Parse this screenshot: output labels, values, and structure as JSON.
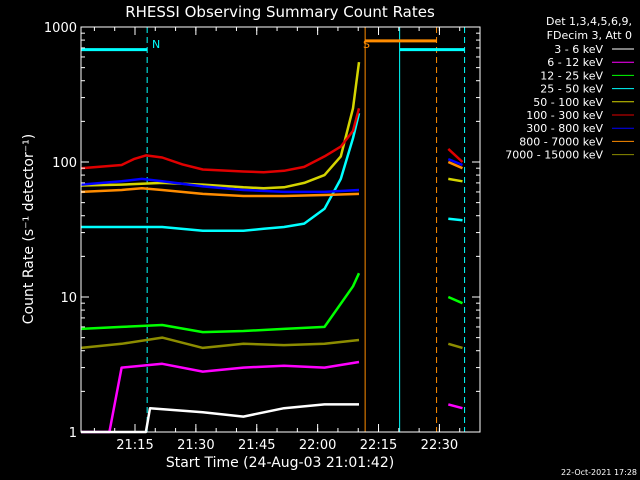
{
  "chart_data": {
    "type": "line",
    "title": "RHESSI Observing Summary Count Rates",
    "xlabel": "Start Time (24-Aug-03 21:01:42)",
    "ylabel": "Count Rate (s⁻¹ detector⁻¹)",
    "y_scale": "log",
    "ylim": [
      1,
      1000
    ],
    "x_unit": "minutes since 21:01:42",
    "xlim": [
      0,
      98.3
    ],
    "xticks": [
      {
        "label": "21:15",
        "value": 13.3
      },
      {
        "label": "21:30",
        "value": 28.3
      },
      {
        "label": "21:45",
        "value": 43.3
      },
      {
        "label": "22:00",
        "value": 58.3
      },
      {
        "label": "22:15",
        "value": 73.3
      },
      {
        "label": "22:30",
        "value": 88.3
      }
    ],
    "yticks": [
      {
        "label": "1",
        "value": 1
      },
      {
        "label": "10",
        "value": 10
      },
      {
        "label": "100",
        "value": 100
      },
      {
        "label": "1000",
        "value": 1000
      }
    ],
    "legend": {
      "placement": "right",
      "header": [
        "Det 1,3,4,5,6,9,",
        "FDecim 3, Att 0"
      ],
      "entries": [
        {
          "name": "3 - 6 keV",
          "color": "#ffffff"
        },
        {
          "name": "6 - 12 keV",
          "color": "#ff00ff"
        },
        {
          "name": "12 - 25 keV",
          "color": "#00ff00"
        },
        {
          "name": "25 - 50 keV",
          "color": "#00ffff"
        },
        {
          "name": "50 - 100 keV",
          "color": "#d4d400"
        },
        {
          "name": "100 - 300 keV",
          "color": "#e00000"
        },
        {
          "name": "300 - 800 keV",
          "color": "#0000ff"
        },
        {
          "name": "800 - 7000 keV",
          "color": "#ff8c00"
        },
        {
          "name": "7000 - 15000 keV",
          "color": "#8c8c00"
        }
      ]
    },
    "series": [
      {
        "name": "12 - 25 keV",
        "color": "#00ff00",
        "x": [
          0,
          10,
          20,
          30,
          40,
          50,
          60,
          67,
          68.5,
          89,
          90.5,
          94
        ],
        "y": [
          5.8,
          6.0,
          6.2,
          5.5,
          5.6,
          5.8,
          6.0,
          12,
          15,
          null,
          10,
          9
        ]
      },
      {
        "name": "25 - 50 keV",
        "color": "#00ffff",
        "x": [
          0,
          10,
          20,
          30,
          40,
          45,
          50,
          55,
          60,
          64,
          67,
          68.5,
          89,
          90.5,
          94
        ],
        "y": [
          33,
          33,
          33,
          31,
          31,
          32,
          33,
          35,
          45,
          75,
          150,
          230,
          null,
          38,
          37
        ]
      },
      {
        "name": "50 - 100 keV",
        "color": "#d4d400",
        "x": [
          0,
          10,
          20,
          30,
          40,
          45,
          50,
          55,
          60,
          64,
          67,
          68.5,
          89,
          90.5,
          94
        ],
        "y": [
          67,
          68,
          70,
          68,
          65,
          64,
          65,
          70,
          80,
          110,
          250,
          550,
          null,
          75,
          72
        ]
      },
      {
        "name": "100 - 300 keV",
        "color": "#e00000",
        "x": [
          0,
          10,
          13,
          16,
          20,
          25,
          30,
          40,
          45,
          50,
          55,
          60,
          64,
          67,
          68.5,
          89,
          90.5,
          94
        ],
        "y": [
          90,
          95,
          105,
          112,
          108,
          96,
          88,
          85,
          84,
          86,
          92,
          110,
          130,
          170,
          250,
          null,
          125,
          100
        ]
      },
      {
        "name": "300 - 800 keV",
        "color": "#0000ff",
        "x": [
          0,
          10,
          15,
          20,
          30,
          40,
          50,
          60,
          68.5,
          89,
          90.5,
          94
        ],
        "y": [
          68,
          72,
          75,
          72,
          66,
          62,
          60,
          60,
          62,
          null,
          105,
          95
        ]
      },
      {
        "name": "800 - 7000 keV",
        "color": "#ff8c00",
        "x": [
          0,
          10,
          15,
          20,
          30,
          40,
          50,
          60,
          68.5,
          89,
          90.5,
          94
        ],
        "y": [
          60,
          62,
          64,
          62,
          58,
          56,
          56,
          57,
          58,
          null,
          100,
          90
        ]
      },
      {
        "name": "7000 - 15000 keV",
        "color": "#8c8c00",
        "x": [
          0,
          10,
          20,
          30,
          40,
          50,
          60,
          68.5,
          89,
          90.5,
          94
        ],
        "y": [
          4.2,
          4.5,
          5.0,
          4.2,
          4.5,
          4.4,
          4.5,
          4.8,
          null,
          4.5,
          4.2
        ]
      },
      {
        "name": "6 - 12 keV",
        "color": "#ff00ff",
        "x": [
          0,
          7,
          10,
          20,
          30,
          40,
          50,
          60,
          68.5,
          89,
          90.5,
          94
        ],
        "y": [
          1,
          1,
          3.0,
          3.2,
          2.8,
          3.0,
          3.1,
          3.0,
          3.3,
          null,
          1.6,
          1.5
        ]
      },
      {
        "name": "3 - 6 keV",
        "color": "#ffffff",
        "x": [
          0,
          16,
          17,
          30,
          40,
          50,
          60,
          68.5
        ],
        "y": [
          1,
          1,
          1.5,
          1.4,
          1.3,
          1.5,
          1.6,
          1.6
        ]
      }
    ],
    "annotations": [
      {
        "text": "N",
        "x": 16.5,
        "color": "#00ffff"
      },
      {
        "text": "S",
        "x": 68.5,
        "color": "#ff8c00"
      }
    ],
    "attenuator_bars": [
      {
        "color": "#00ffff",
        "x0": 0,
        "x1": 16.3,
        "y": 680
      },
      {
        "color": "#ff8c00",
        "x0": 70,
        "x1": 87.6,
        "y": 790
      },
      {
        "color": "#00ffff",
        "x0": 78.5,
        "x1": 94.5,
        "y": 680
      }
    ],
    "vlines": [
      {
        "x": 16.3,
        "color": "#00ffff",
        "style": "dashed"
      },
      {
        "x": 70.0,
        "color": "#ff8c00",
        "style": "solid"
      },
      {
        "x": 78.5,
        "color": "#00ffff",
        "style": "solid"
      },
      {
        "x": 87.6,
        "color": "#ff8c00",
        "style": "dashed"
      },
      {
        "x": 94.5,
        "color": "#00ffff",
        "style": "dashed"
      }
    ],
    "timestamp": "22-Oct-2021 17:28"
  }
}
